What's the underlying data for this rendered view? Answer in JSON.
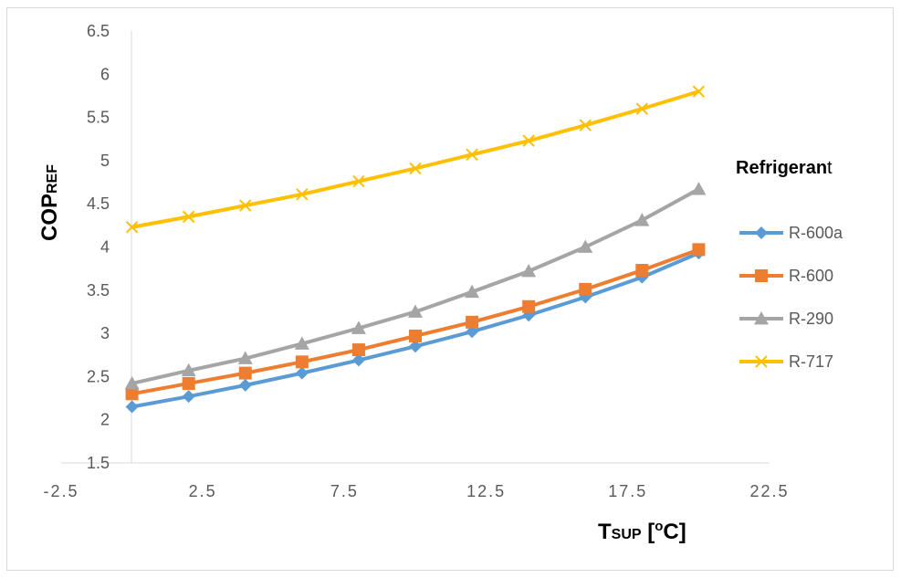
{
  "chart_data": {
    "type": "line",
    "x": [
      0,
      2,
      4,
      6,
      8,
      10,
      12,
      14,
      16,
      18,
      20
    ],
    "series": [
      {
        "name": "R-600a",
        "color": "#5b9bd5",
        "marker": "diamond",
        "values": [
          2.15,
          2.27,
          2.4,
          2.54,
          2.69,
          2.85,
          3.02,
          3.21,
          3.42,
          3.65,
          3.93
        ]
      },
      {
        "name": "R-600",
        "color": "#ed7d31",
        "marker": "square",
        "values": [
          2.3,
          2.42,
          2.54,
          2.67,
          2.81,
          2.97,
          3.13,
          3.31,
          3.51,
          3.73,
          3.97
        ]
      },
      {
        "name": "R-290",
        "color": "#a5a5a5",
        "marker": "triangle",
        "values": [
          2.42,
          2.57,
          2.71,
          2.88,
          3.06,
          3.25,
          3.48,
          3.72,
          4.0,
          4.31,
          4.67
        ]
      },
      {
        "name": "R-717",
        "color": "#ffc000",
        "marker": "x",
        "values": [
          4.23,
          4.35,
          4.48,
          4.61,
          4.76,
          4.91,
          5.07,
          5.23,
          5.41,
          5.6,
          5.8
        ]
      }
    ],
    "xlim": [
      -2.5,
      22.5
    ],
    "ylim": [
      1.5,
      6.5
    ],
    "x_ticks": [
      "-2.5",
      "2.5",
      "7.5",
      "12.5",
      "17.5",
      "22.5"
    ],
    "y_ticks": [
      "1.5",
      "2",
      "2.5",
      "3",
      "3.5",
      "4",
      "4.5",
      "5",
      "5.5",
      "6",
      "6.5"
    ],
    "ylabel": {
      "main": "COP",
      "sub": "REF"
    },
    "xlabel": {
      "main": "T",
      "sub": "SUP",
      "unit_open": " [",
      "unit_sup": "o",
      "unit_close": "C]"
    },
    "legend": {
      "title_main": "Refrigeran",
      "title_tail": "t",
      "position": "right"
    },
    "grid": false
  }
}
